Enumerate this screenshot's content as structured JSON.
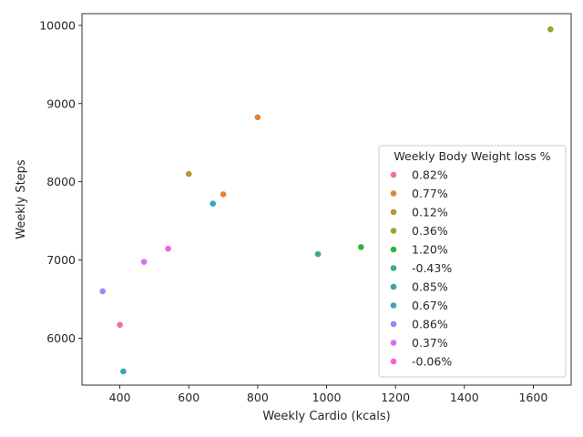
{
  "chart_data": {
    "type": "scatter",
    "xlabel": "Weekly Cardio (kcals)",
    "ylabel": "Weekly Steps",
    "xlim": [
      290,
      1710
    ],
    "ylim": [
      5400,
      10150
    ],
    "x_ticks": [
      400,
      600,
      800,
      1000,
      1200,
      1400,
      1600
    ],
    "y_ticks": [
      6000,
      7000,
      8000,
      9000,
      10000
    ],
    "grid": false,
    "legend_title": "Weekly Body Weight loss %",
    "legend_position": "lower-right",
    "series": [
      {
        "name": "0.82%",
        "color": "#f77189",
        "points": [
          {
            "x": 400,
            "y": 6170
          }
        ]
      },
      {
        "name": "0.77%",
        "color": "#e18432",
        "points": [
          {
            "x": 800,
            "y": 8825
          },
          {
            "x": 700,
            "y": 7840
          }
        ]
      },
      {
        "name": "0.12%",
        "color": "#b79631",
        "points": [
          {
            "x": 600,
            "y": 8100
          }
        ]
      },
      {
        "name": "0.36%",
        "color": "#97a431",
        "points": [
          {
            "x": 1650,
            "y": 9950
          }
        ]
      },
      {
        "name": "1.20%",
        "color": "#33b040",
        "points": [
          {
            "x": 1100,
            "y": 7165
          }
        ]
      },
      {
        "name": "-0.43%",
        "color": "#35ad8b",
        "points": [
          {
            "x": 975,
            "y": 7075
          }
        ]
      },
      {
        "name": "0.85%",
        "color": "#38a8a5",
        "points": [
          {
            "x": 410,
            "y": 5575
          }
        ]
      },
      {
        "name": "0.67%",
        "color": "#3ba3c2",
        "points": [
          {
            "x": 670,
            "y": 7720
          }
        ]
      },
      {
        "name": "0.86%",
        "color": "#8a8ff5",
        "points": [
          {
            "x": 350,
            "y": 6600
          }
        ]
      },
      {
        "name": "0.37%",
        "color": "#d56ff0",
        "points": [
          {
            "x": 470,
            "y": 6975
          }
        ]
      },
      {
        "name": "-0.06%",
        "color": "#f461dd",
        "points": [
          {
            "x": 540,
            "y": 7145
          }
        ]
      }
    ]
  }
}
